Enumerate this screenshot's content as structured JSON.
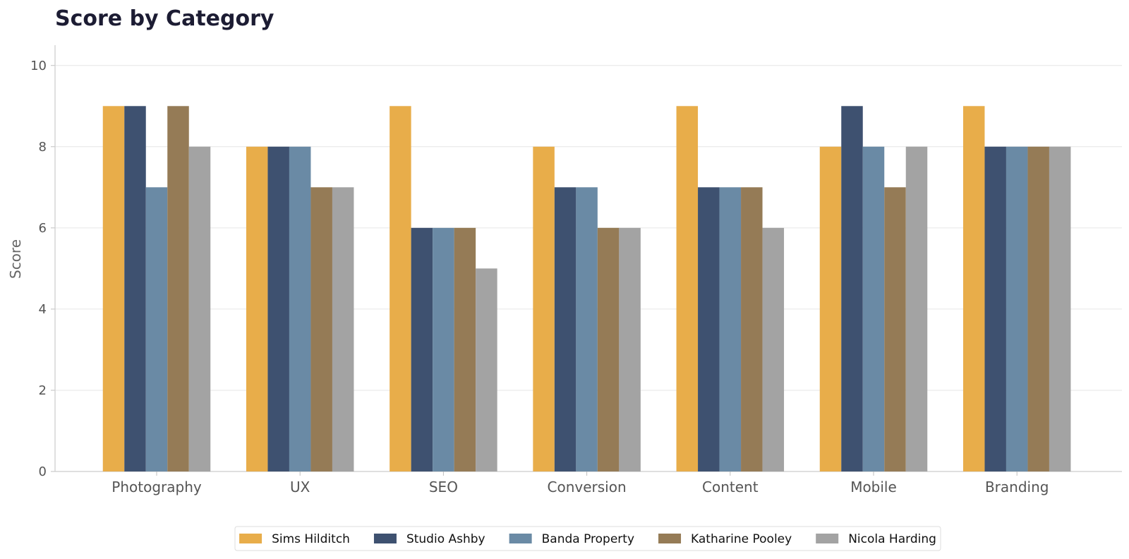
{
  "chart_data": {
    "type": "bar",
    "title": "Score by Category",
    "xlabel": "",
    "ylabel": "Score",
    "ylim": [
      0,
      10.5
    ],
    "yticks": [
      0,
      2,
      4,
      6,
      8,
      10
    ],
    "grid": true,
    "legend_position": "bottom-center",
    "categories": [
      "Photography",
      "UX",
      "SEO",
      "Conversion",
      "Content",
      "Mobile",
      "Branding"
    ],
    "series": [
      {
        "name": "Sims Hilditch",
        "color": "#E8AD4A",
        "values": [
          9,
          8,
          9,
          8,
          9,
          8,
          9
        ]
      },
      {
        "name": "Studio Ashby",
        "color": "#3E5170",
        "values": [
          9,
          8,
          6,
          7,
          7,
          9,
          8
        ]
      },
      {
        "name": "Banda Property",
        "color": "#6A8AA5",
        "values": [
          7,
          8,
          6,
          7,
          7,
          8,
          8
        ]
      },
      {
        "name": "Katharine Pooley",
        "color": "#957B56",
        "values": [
          9,
          7,
          6,
          6,
          7,
          7,
          8
        ]
      },
      {
        "name": "Nicola Harding",
        "color": "#A3A3A3",
        "values": [
          8,
          7,
          5,
          6,
          6,
          8,
          8
        ]
      }
    ]
  }
}
